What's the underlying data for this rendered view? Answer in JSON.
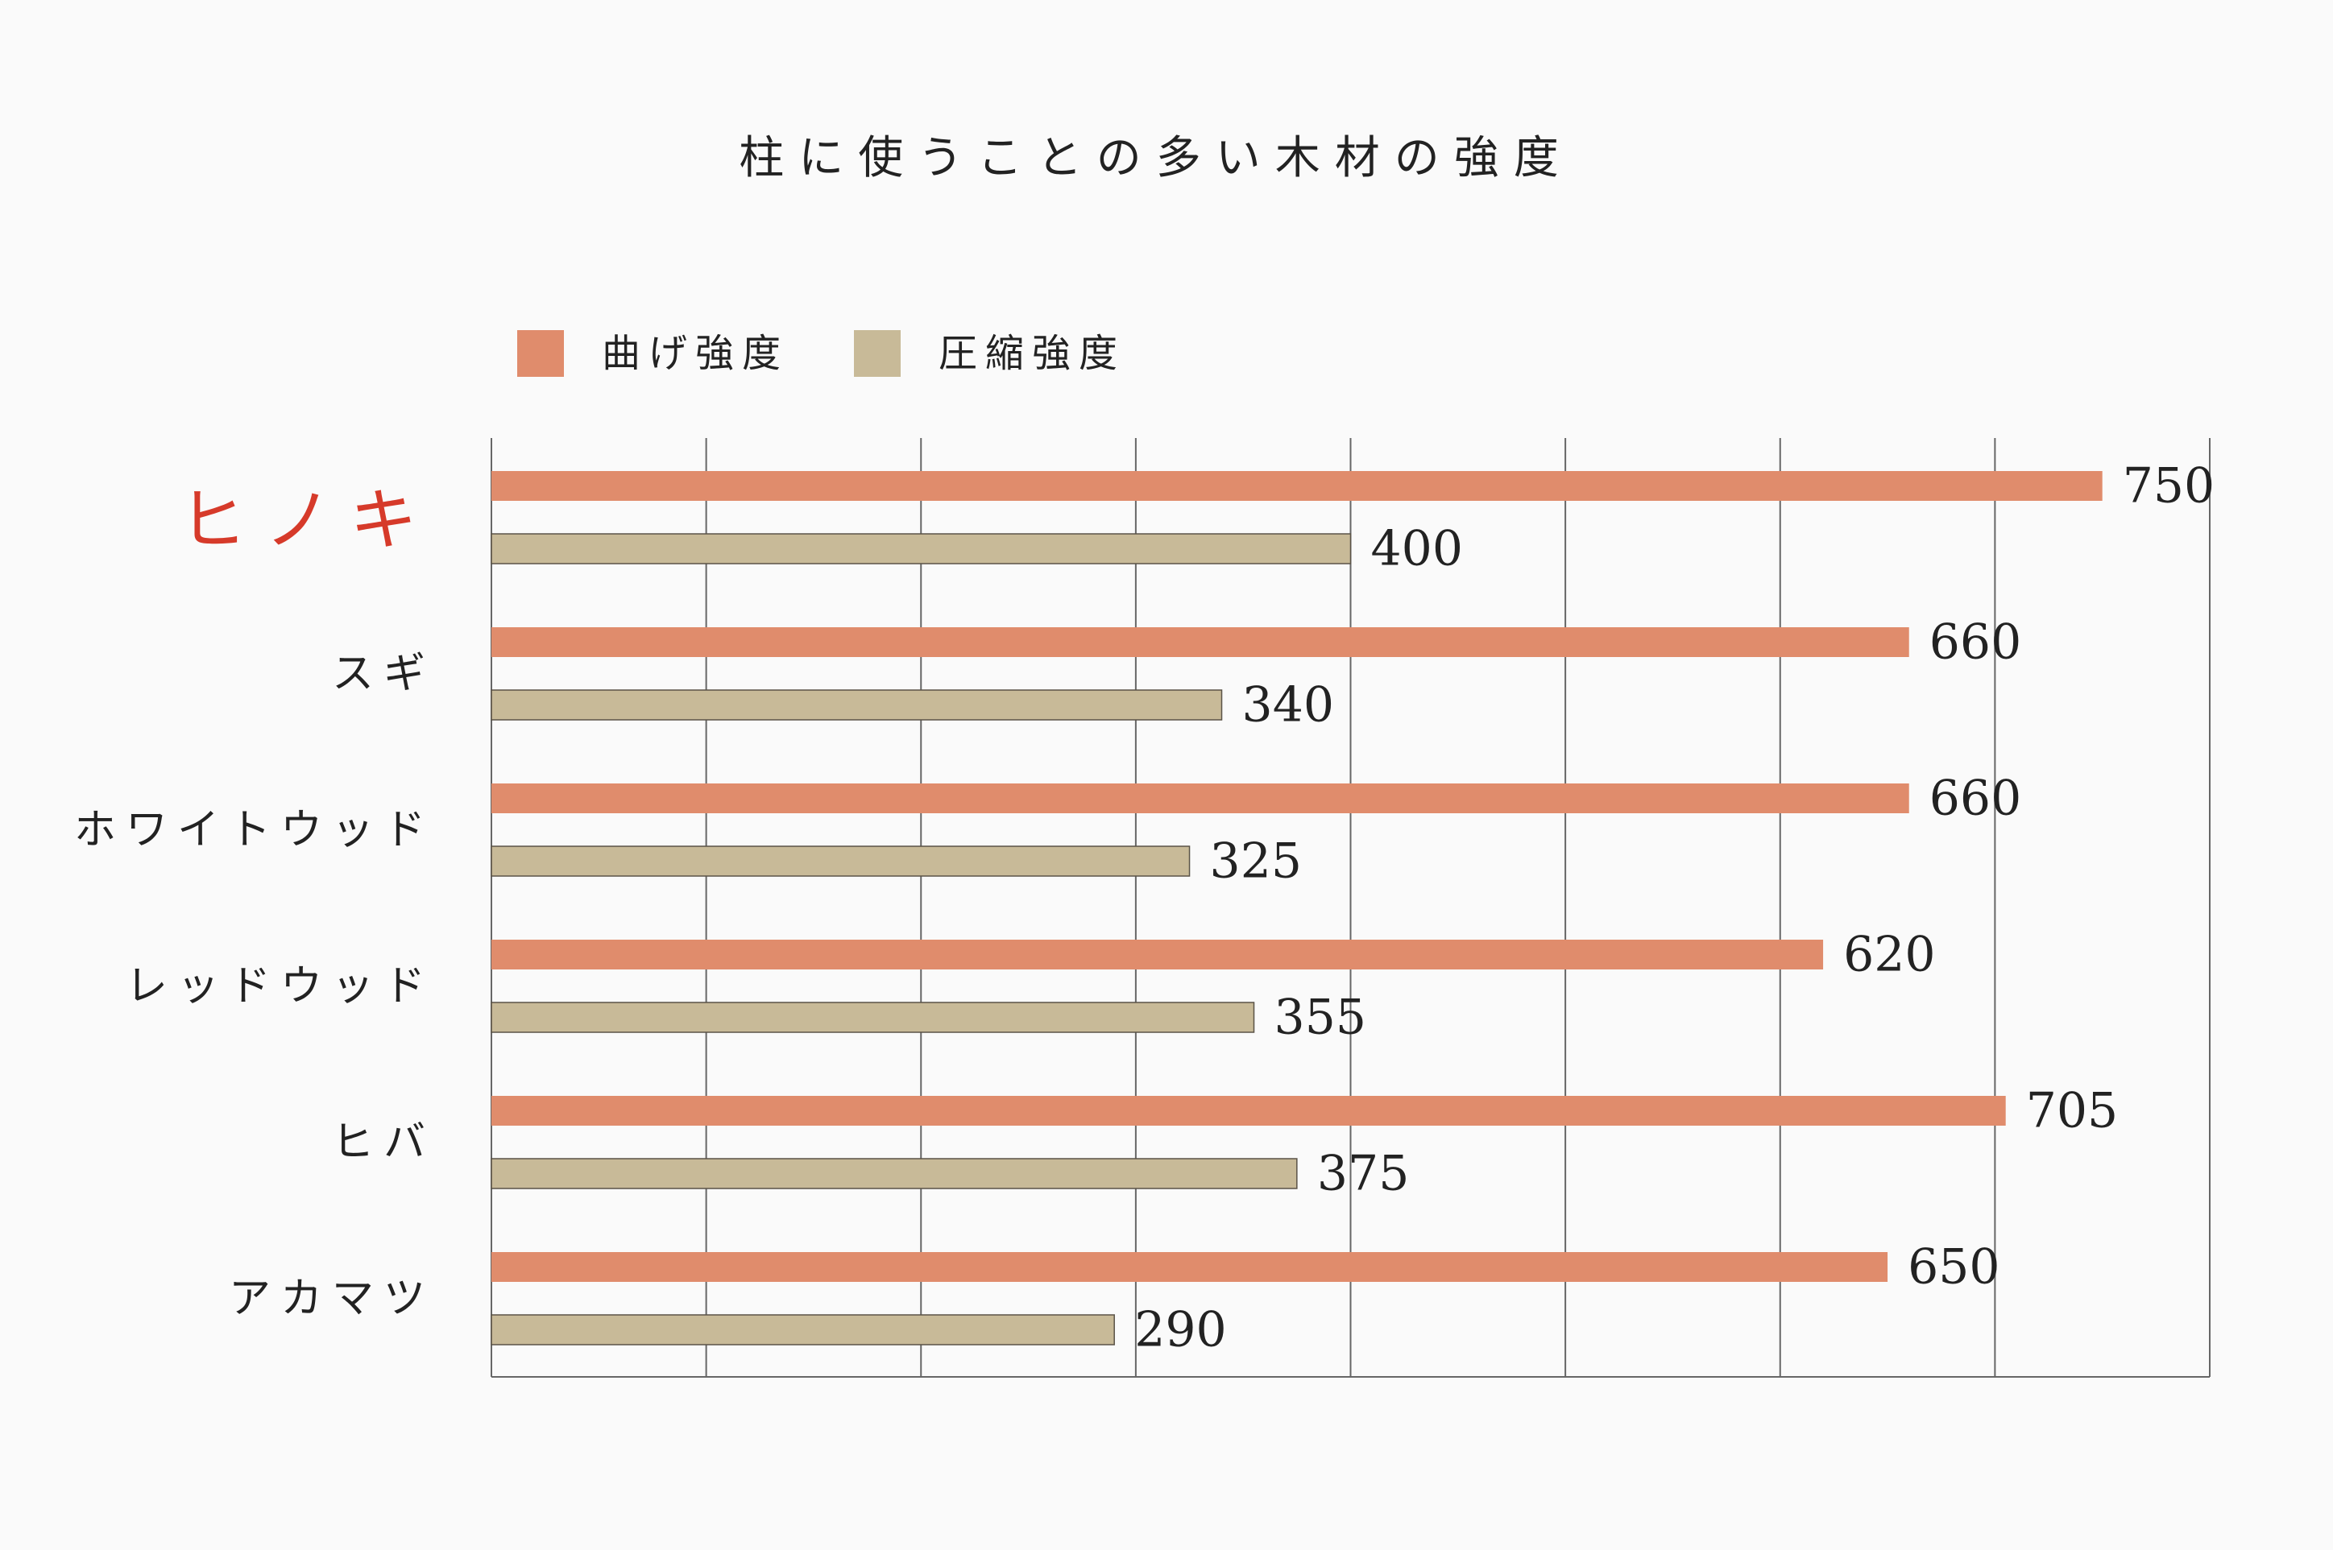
{
  "chart_data": {
    "type": "bar",
    "orientation": "horizontal",
    "title": "柱に使うことの多い木材の強度",
    "categories": [
      "ヒノキ",
      "スギ",
      "ホワイトウッド",
      "レッドウッド",
      "ヒバ",
      "アカマツ"
    ],
    "highlight_category": "ヒノキ",
    "series": [
      {
        "name": "曲げ強度",
        "values": [
          750,
          660,
          660,
          620,
          705,
          650
        ],
        "color": "#e08c6c"
      },
      {
        "name": "圧縮強度",
        "values": [
          400,
          340,
          325,
          355,
          375,
          290
        ],
        "color": "#c8ba98"
      }
    ],
    "xlim": [
      0,
      800
    ],
    "grid": true,
    "gridlines": [
      100,
      200,
      300,
      400,
      500,
      600,
      700
    ],
    "legend_position": "top-left",
    "highlight_color": "#d63a2a",
    "axis_color": "#666666"
  }
}
